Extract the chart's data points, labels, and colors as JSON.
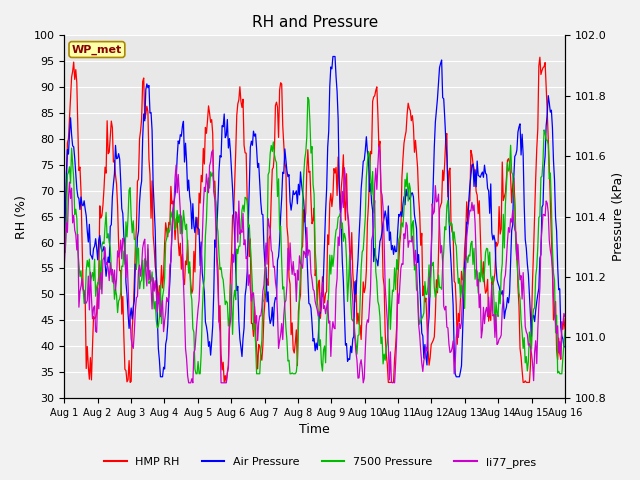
{
  "title": "RH and Pressure",
  "xlabel": "Time",
  "ylabel_left": "RH (%)",
  "ylabel_right": "Pressure (kPa)",
  "ylim_left": [
    30,
    100
  ],
  "ylim_right": [
    100.8,
    102.0
  ],
  "annotation": "WP_met",
  "xtick_labels": [
    "Aug 1",
    "Aug 2",
    "Aug 3",
    "Aug 4",
    "Aug 5",
    "Aug 6",
    "Aug 7",
    "Aug 8",
    "Aug 9",
    "Aug 10",
    "Aug 11",
    "Aug 12",
    "Aug 13",
    "Aug 14",
    "Aug 15",
    "Aug 16"
  ],
  "legend": [
    {
      "label": "HMP RH",
      "color": "#ff0000"
    },
    {
      "label": "Air Pressure",
      "color": "#0000ff"
    },
    {
      "label": "7500 Pressure",
      "color": "#00bb00"
    },
    {
      "label": "li77_pres",
      "color": "#cc00cc"
    }
  ],
  "bg_color": "#e8e8e8",
  "grid_color": "#ffffff",
  "title_fontsize": 11,
  "fig_bg": "#f2f2f2"
}
